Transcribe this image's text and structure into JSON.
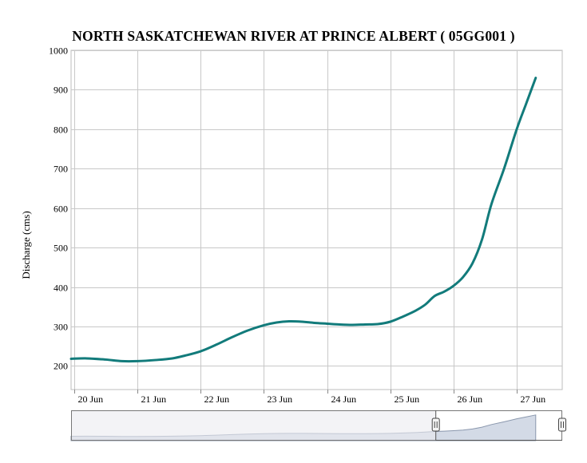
{
  "chart_data": {
    "type": "line",
    "title": "NORTH SASKATCHEWAN RIVER AT PRINCE ALBERT ( 05GG001 )",
    "ylabel": "Discharge (cms)",
    "xlabel": "",
    "ylim": [
      140,
      1000
    ],
    "yticks": [
      200,
      300,
      400,
      500,
      600,
      700,
      800,
      900,
      1000
    ],
    "xticks": [
      "20 Jun",
      "21 Jun",
      "22 Jun",
      "23 Jun",
      "24 Jun",
      "25 Jun",
      "26 Jun",
      "27 Jun"
    ],
    "xlim_days": [
      19.95,
      27.72
    ],
    "grid": true,
    "series": [
      {
        "color": "#127b7b",
        "x": [
          19.95,
          20.2,
          20.5,
          20.75,
          21.0,
          21.3,
          21.55,
          21.75,
          22.0,
          22.25,
          22.5,
          22.75,
          23.0,
          23.2,
          23.4,
          23.6,
          23.8,
          24.0,
          24.2,
          24.4,
          24.6,
          24.8,
          25.0,
          25.2,
          25.4,
          25.55,
          25.7,
          25.85,
          26.0,
          26.15,
          26.3,
          26.45,
          26.6,
          26.8,
          27.0,
          27.15,
          27.3
        ],
        "y": [
          218,
          219,
          216,
          212,
          212,
          215,
          219,
          226,
          237,
          254,
          273,
          290,
          303,
          310,
          313,
          312,
          309,
          307,
          305,
          304,
          305,
          306,
          312,
          325,
          340,
          355,
          377,
          388,
          403,
          425,
          460,
          520,
          610,
          700,
          800,
          865,
          930
        ]
      }
    ]
  },
  "navigator": {
    "range_start": "25 Jun",
    "range_end": "27 Jun"
  }
}
